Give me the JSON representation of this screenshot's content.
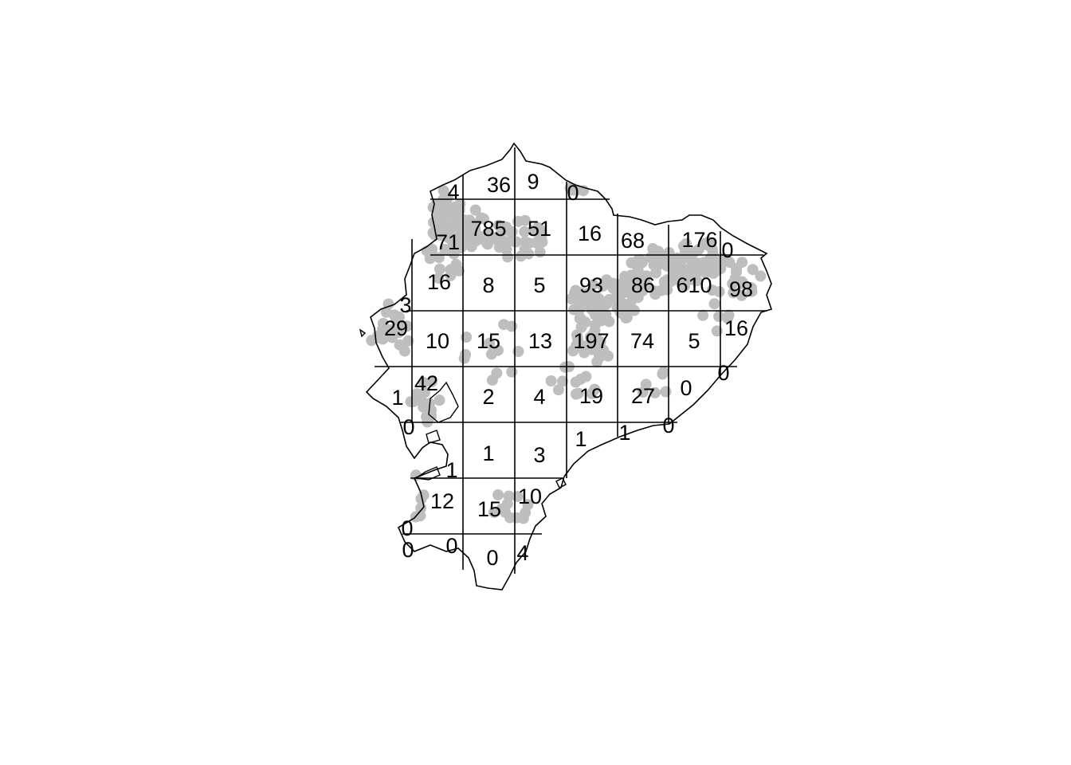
{
  "map": {
    "region": "Ecuador",
    "point_color": "#bebebe",
    "outline_color": "#000000",
    "grid_color": "#000000"
  },
  "cells": [
    {
      "value": "4"
    },
    {
      "value": "36"
    },
    {
      "value": "9"
    },
    {
      "value": "0"
    },
    {
      "value": "71"
    },
    {
      "value": "785"
    },
    {
      "value": "51"
    },
    {
      "value": "16"
    },
    {
      "value": "68"
    },
    {
      "value": "176"
    },
    {
      "value": "0"
    },
    {
      "value": "16"
    },
    {
      "value": "8"
    },
    {
      "value": "5"
    },
    {
      "value": "93"
    },
    {
      "value": "86"
    },
    {
      "value": "610"
    },
    {
      "value": "98"
    },
    {
      "value": "3"
    },
    {
      "value": "29"
    },
    {
      "value": "10"
    },
    {
      "value": "15"
    },
    {
      "value": "13"
    },
    {
      "value": "197"
    },
    {
      "value": "74"
    },
    {
      "value": "5"
    },
    {
      "value": "16"
    },
    {
      "value": "42"
    },
    {
      "value": "1"
    },
    {
      "value": "2"
    },
    {
      "value": "4"
    },
    {
      "value": "19"
    },
    {
      "value": "27"
    },
    {
      "value": "0"
    },
    {
      "value": "0"
    },
    {
      "value": "0"
    },
    {
      "value": "1"
    },
    {
      "value": "3"
    },
    {
      "value": "1"
    },
    {
      "value": "1"
    },
    {
      "value": "0"
    },
    {
      "value": "1"
    },
    {
      "value": "12"
    },
    {
      "value": "15"
    },
    {
      "value": "10"
    },
    {
      "value": "0"
    },
    {
      "value": "0"
    },
    {
      "value": "0"
    },
    {
      "value": "0"
    },
    {
      "value": "4"
    }
  ]
}
